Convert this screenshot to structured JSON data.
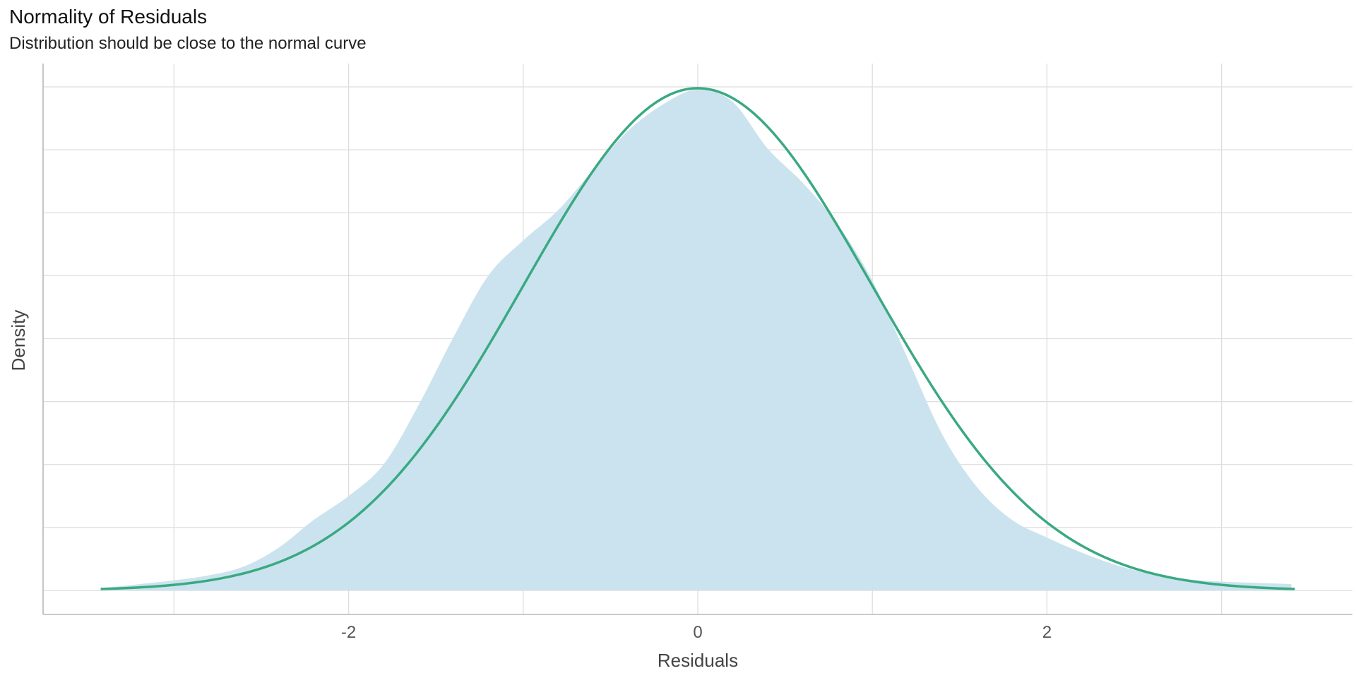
{
  "chart_data": {
    "type": "area",
    "title": "Normality of Residuals",
    "subtitle": "Distribution should be close to the normal curve",
    "xlabel": "Residuals",
    "ylabel": "Density",
    "xlim": [
      -3.75,
      3.75
    ],
    "ylim": [
      0,
      0.4
    ],
    "x_ticks": [
      -2,
      0,
      2
    ],
    "y_ticks_labeled": false,
    "grid": true,
    "colors": {
      "density_fill": "#c8e1ee",
      "normal_curve": "#3aa981",
      "grid": "#dedede",
      "axis": "#b8b8b8"
    },
    "series": [
      {
        "kind": "density",
        "x": [
          -3.4,
          -3.2,
          -3.0,
          -2.8,
          -2.6,
          -2.4,
          -2.2,
          -2.0,
          -1.8,
          -1.6,
          -1.4,
          -1.2,
          -1.0,
          -0.8,
          -0.6,
          -0.4,
          -0.2,
          0.0,
          0.2,
          0.4,
          0.6,
          0.8,
          1.0,
          1.2,
          1.4,
          1.6,
          1.8,
          2.0,
          2.2,
          2.4,
          2.6,
          2.8,
          3.0,
          3.2,
          3.4
        ],
        "y": [
          0.002,
          0.005,
          0.008,
          0.012,
          0.019,
          0.034,
          0.056,
          0.075,
          0.1,
          0.147,
          0.201,
          0.25,
          0.278,
          0.302,
          0.334,
          0.365,
          0.386,
          0.398,
          0.388,
          0.351,
          0.324,
          0.291,
          0.246,
          0.185,
          0.124,
          0.082,
          0.056,
          0.042,
          0.03,
          0.02,
          0.013,
          0.009,
          0.007,
          0.006,
          0.005
        ]
      },
      {
        "kind": "normal",
        "mean": 0,
        "sd": 1,
        "x_range": [
          -3.42,
          3.42
        ]
      }
    ]
  }
}
